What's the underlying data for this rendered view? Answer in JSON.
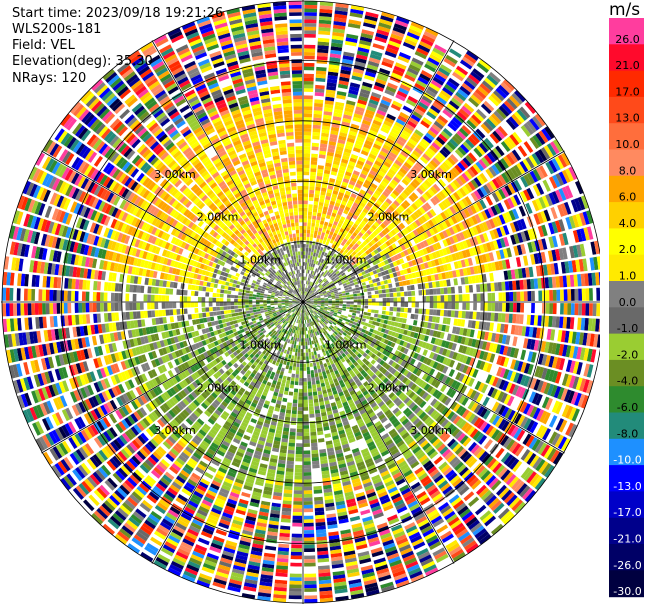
{
  "header": {
    "start_time": "Start time: 2023/09/18 19:21:26",
    "instrument": "WLS200s-181",
    "field": "Field: VEL",
    "elevation": "Elevation(deg): 35.30",
    "nrays": "NRays: 120"
  },
  "colorbar": {
    "unit": "m/s",
    "ticks": [
      "26.0",
      "21.0",
      "17.0",
      "13.0",
      "10.0",
      "8.0",
      "6.0",
      "4.0",
      "2.0",
      "1.0",
      "0.0",
      "-1.0",
      "-2.0",
      "-4.0",
      "-6.0",
      "-8.0",
      "-10.0",
      "-13.0",
      "-17.0",
      "-21.0",
      "-26.0",
      "-30.0"
    ],
    "colors": [
      "#ff3d9e",
      "#ff0a2c",
      "#ff2a00",
      "#ff4a1a",
      "#ff6e3c",
      "#ff8a60",
      "#ffa500",
      "#ffd000",
      "#ffff00",
      "#ffea00",
      "#808080",
      "#696969",
      "#9acd32",
      "#6b8e23",
      "#2e8b2e",
      "#228b7a",
      "#1e90ff",
      "#0000ff",
      "#0000c8",
      "#00008b",
      "#000066",
      "#000040"
    ]
  },
  "chart_data": {
    "type": "heatmap",
    "projection": "polar-ppi",
    "field": "VEL",
    "units": "m/s",
    "nrays": 120,
    "range_rings_km": [
      "1.00km",
      "2.00km",
      "3.00km"
    ],
    "ring_label_directions": [
      "NW",
      "NE",
      "SW",
      "SE"
    ],
    "spokes_deg": [
      0,
      30,
      60,
      90,
      120,
      150,
      180,
      210,
      240,
      270,
      300,
      330
    ],
    "max_range_km": 5,
    "regions": [
      {
        "description": "positive radial velocity, north sector",
        "r_km": [
          1.1,
          3.2
        ],
        "value_range": [
          2.0,
          6.0
        ]
      },
      {
        "description": "near zero velocity, near origin",
        "r_km": [
          0,
          1.2
        ],
        "value_range": [
          -2.0,
          1.0
        ]
      },
      {
        "description": "negative radial velocity, south sector",
        "r_km": [
          0.5,
          3.3
        ],
        "value_range": [
          -6.0,
          -1.0
        ]
      },
      {
        "description": "noise, outer ring",
        "r_km": [
          3.3,
          5.0
        ],
        "value_range": [
          -30.0,
          26.0
        ]
      }
    ]
  }
}
